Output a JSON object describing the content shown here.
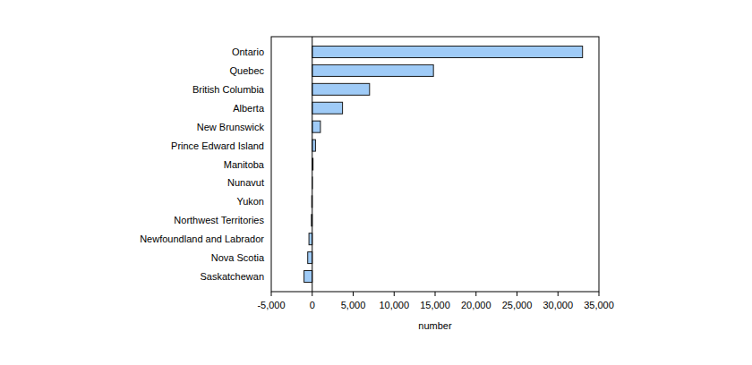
{
  "chart_data": {
    "type": "bar",
    "orientation": "horizontal",
    "x_label": "number",
    "categories": [
      "Ontario",
      "Quebec",
      "British Columbia",
      "Alberta",
      "New Brunswick",
      "Prince Edward Island",
      "Manitoba",
      "Nunavut",
      "Yukon",
      "Northwest Territories",
      "Newfoundland and Labrador",
      "Nova Scotia",
      "Saskatchewan"
    ],
    "values": [
      33000,
      14800,
      7000,
      3700,
      1000,
      400,
      100,
      20,
      -60,
      -100,
      -400,
      -550,
      -1000
    ],
    "color": "#9fcbf7",
    "xlim": [
      -5000,
      35000
    ],
    "xticks": [
      {
        "value": -5000,
        "label": "-5,000"
      },
      0,
      {
        "value": 5000,
        "label": "5,000"
      },
      {
        "value": 10000,
        "label": "10,000"
      },
      {
        "value": 15000,
        "label": "15,000"
      },
      {
        "value": 20000,
        "label": "20,000"
      },
      {
        "value": 25000,
        "label": "25,000"
      },
      {
        "value": 30000,
        "label": "30,000"
      },
      {
        "value": 35000,
        "label": "35,000"
      }
    ],
    "grid": false
  }
}
